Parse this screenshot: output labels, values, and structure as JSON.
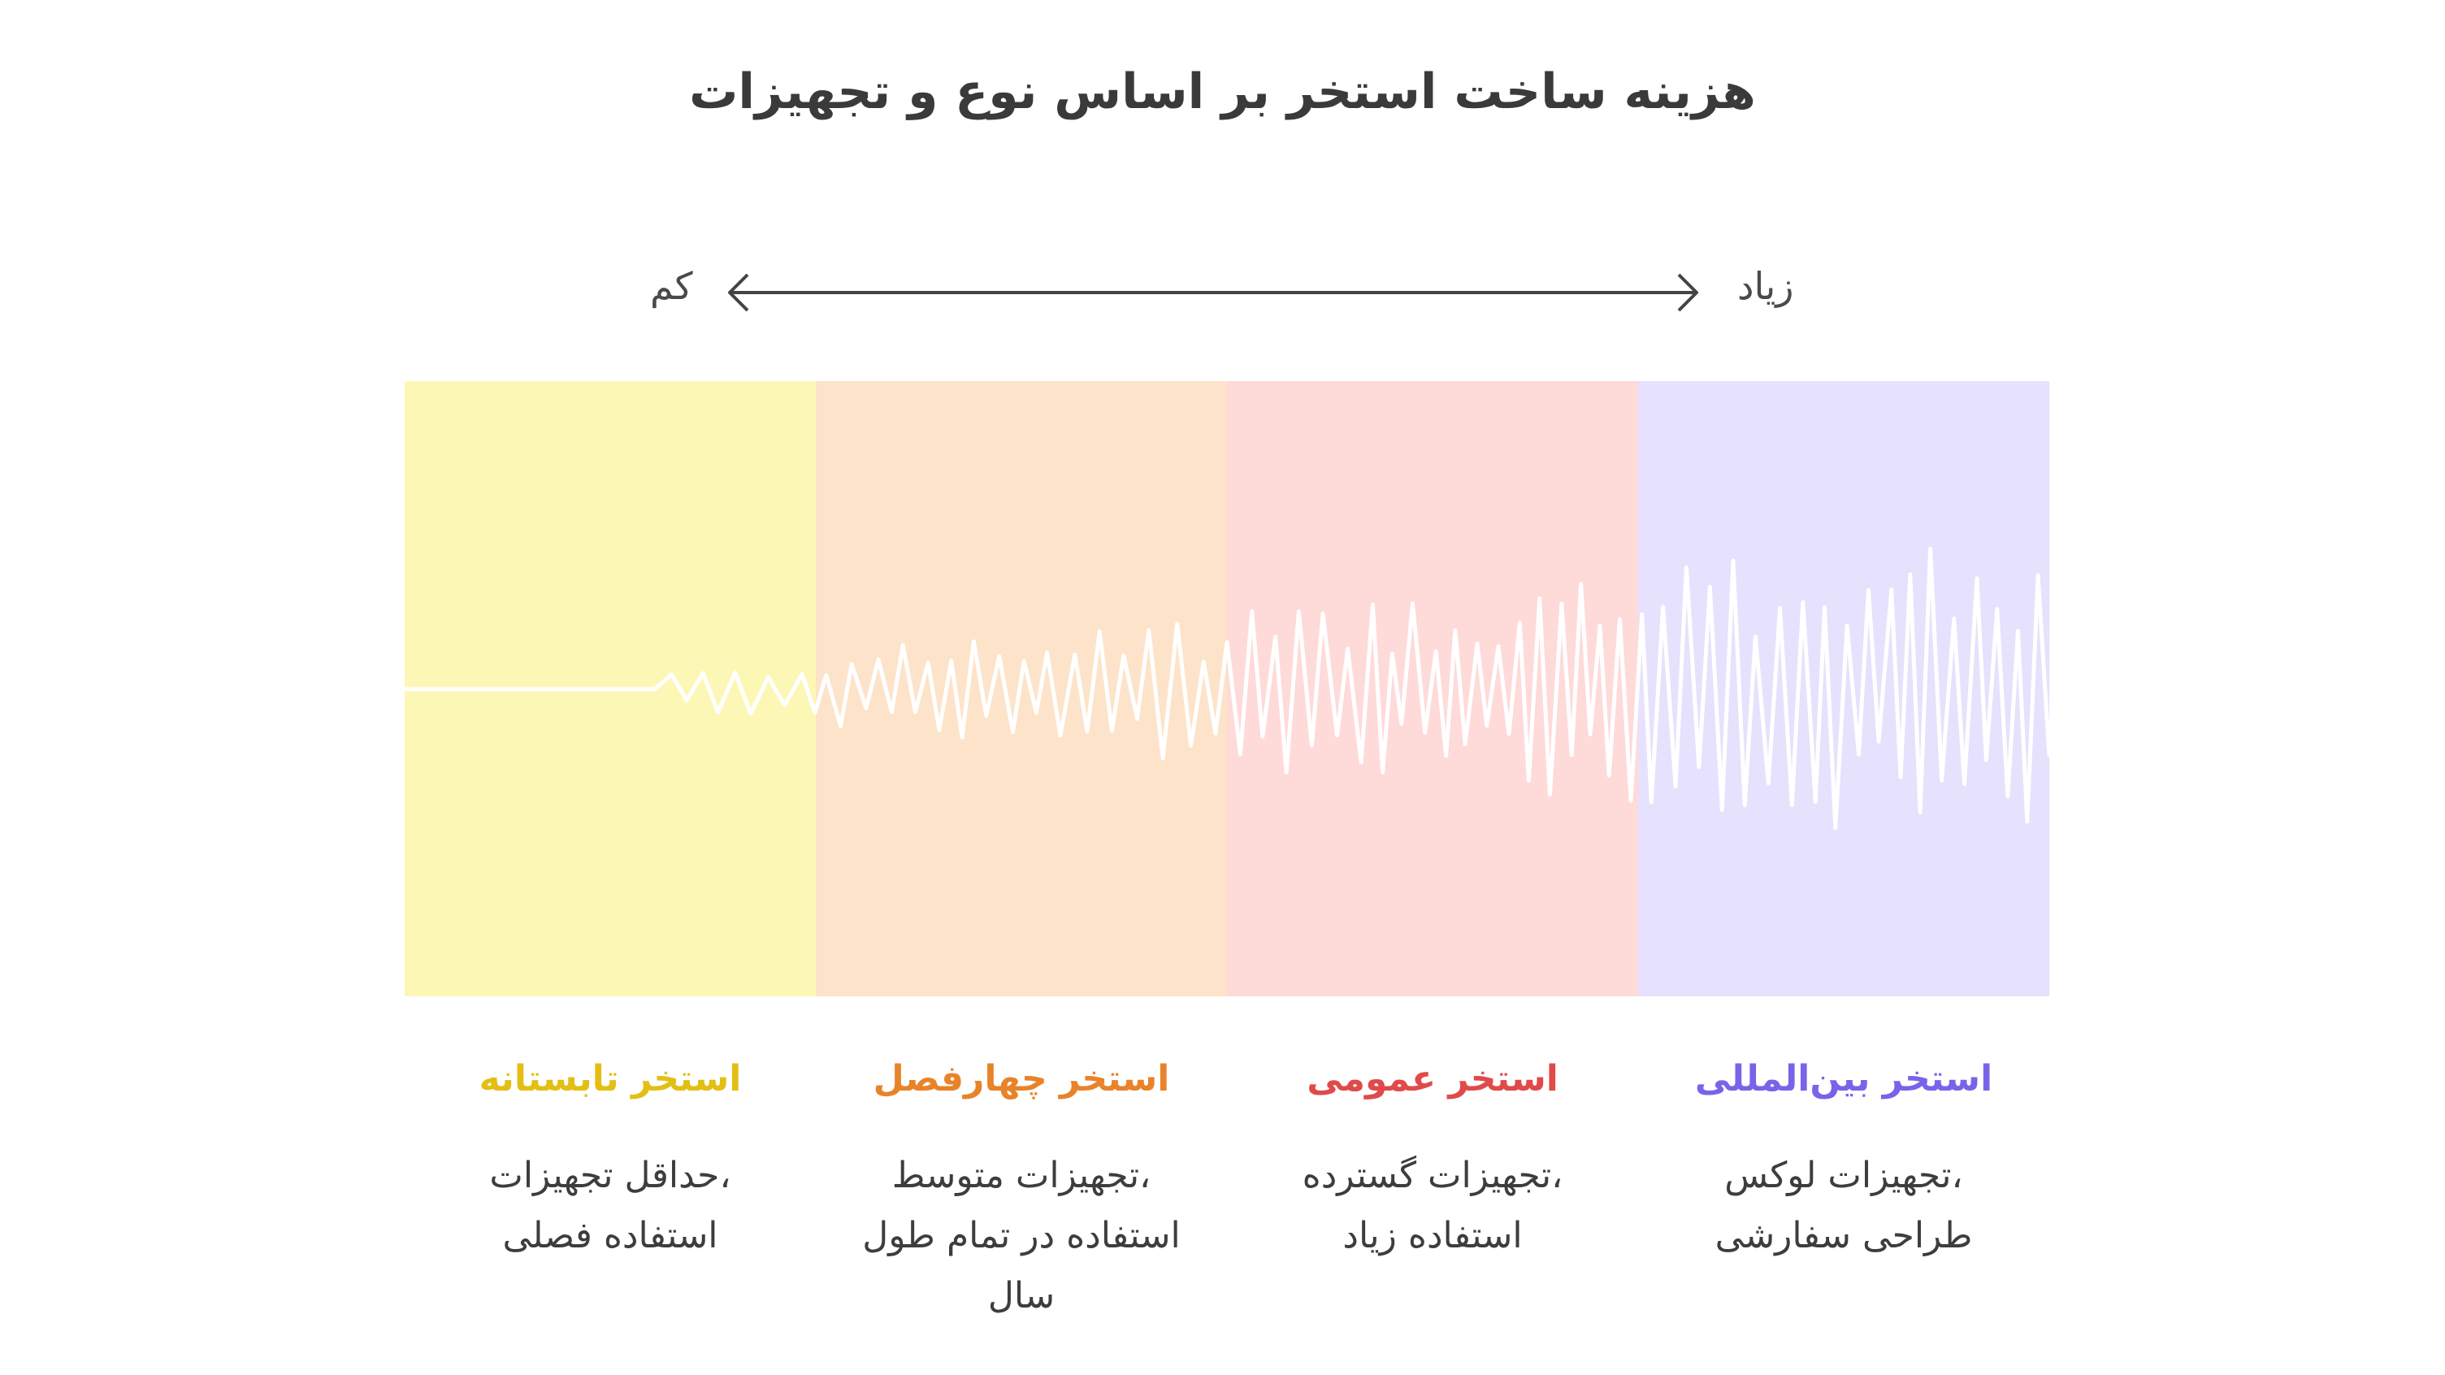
{
  "title": "هزینه ساخت استخر بر اساس نوع و تجهیزات",
  "scale": {
    "low_label": "کم",
    "high_label": "زیاد"
  },
  "categories": [
    {
      "name": "استخر تابستانه",
      "color": "#e3bf14",
      "band_color": "#fdf7b6",
      "desc_lines": [
        "،حداقل تجهیزات",
        "استفاده فصلی"
      ]
    },
    {
      "name": "استخر چهارفصل",
      "color": "#e8832a",
      "band_color": "#fde3c9",
      "desc_lines": [
        "،تجهیزات متوسط",
        "استفاده در تمام طول",
        "سال"
      ]
    },
    {
      "name": "استخر عمومی",
      "color": "#e04a4a",
      "band_color": "#fedad9",
      "desc_lines": [
        "،تجهیزات گسترده",
        "استفاده زیاد"
      ]
    },
    {
      "name": "استخر بین‌المللی",
      "color": "#7a63e8",
      "band_color": "#e6e1fd",
      "desc_lines": [
        "،تجهیزات لوکس",
        "طراحی سفارشی"
      ]
    }
  ]
}
